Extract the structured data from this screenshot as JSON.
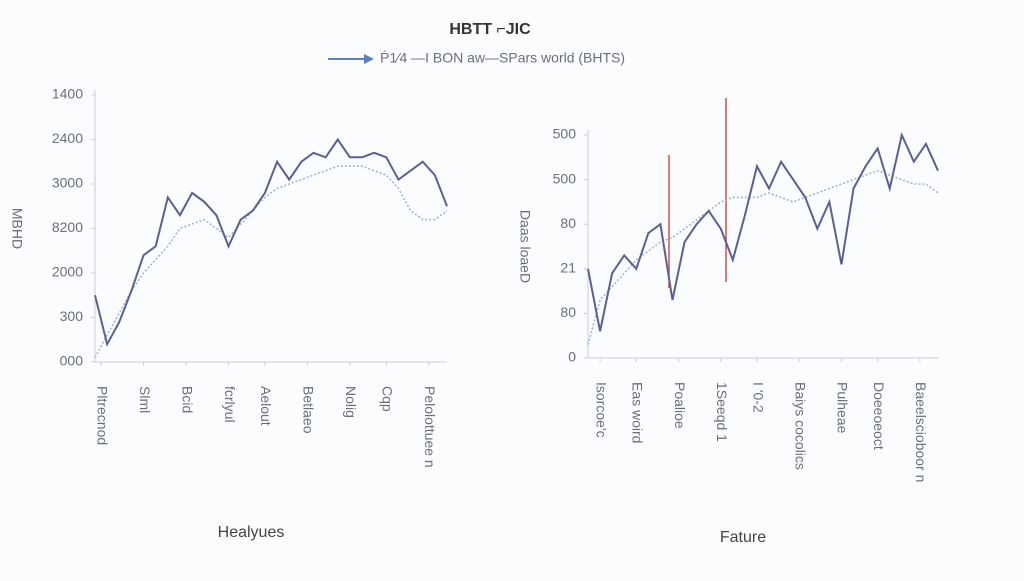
{
  "header": {
    "title": "HBTT ⌐JIC",
    "legend": "Ṕ1⁄4 —I BON aw—SPars world (BHTS)"
  },
  "chart_data": [
    {
      "type": "line",
      "ylabel": "MBHD",
      "xlabel": "Healyues",
      "x": [
        0,
        1,
        2,
        3,
        4,
        5,
        6,
        7,
        8,
        9,
        10,
        11,
        12,
        13,
        14,
        15,
        16,
        17,
        18,
        19,
        20,
        21,
        22,
        23,
        24,
        25,
        26,
        27,
        28,
        29
      ],
      "xlim": [
        0,
        29
      ],
      "xticks": [
        {
          "value": 0.5,
          "label": "Pltrecnod"
        },
        {
          "value": 4,
          "label": "Slml"
        },
        {
          "value": 7.5,
          "label": "Bcid"
        },
        {
          "value": 11,
          "label": "fcrlyul"
        },
        {
          "value": 14,
          "label": "Aelout"
        },
        {
          "value": 17.5,
          "label": "Betlaeo"
        },
        {
          "value": 21,
          "label": "Nolig"
        },
        {
          "value": 24,
          "label": "Cqp"
        },
        {
          "value": 27.5,
          "label": "Pelolottuee n"
        }
      ],
      "ylim": [
        0,
        6
      ],
      "yticks": [
        {
          "value": 6,
          "label": "1400"
        },
        {
          "value": 5,
          "label": "2400"
        },
        {
          "value": 4,
          "label": "3000"
        },
        {
          "value": 3,
          "label": "8200"
        },
        {
          "value": 2,
          "label": "2000"
        },
        {
          "value": 1,
          "label": "300"
        },
        {
          "value": 0,
          "label": "000"
        }
      ],
      "series": [
        {
          "color": "#5a6092",
          "values": [
            1.5,
            0.4,
            0.9,
            1.6,
            2.4,
            2.6,
            3.7,
            3.3,
            3.8,
            3.6,
            3.3,
            2.6,
            3.2,
            3.4,
            3.8,
            4.5,
            4.1,
            4.5,
            4.7,
            4.6,
            5.0,
            4.6,
            4.6,
            4.7,
            4.6,
            4.1,
            4.3,
            4.5,
            4.2,
            3.5
          ]
        },
        {
          "color": "#9db6d8",
          "values": [
            0.1,
            0.6,
            1.1,
            1.6,
            2.0,
            2.3,
            2.6,
            3.0,
            3.1,
            3.2,
            3.0,
            2.8,
            3.1,
            3.4,
            3.7,
            3.9,
            4.0,
            4.1,
            4.2,
            4.3,
            4.4,
            4.4,
            4.4,
            4.3,
            4.2,
            3.9,
            3.4,
            3.2,
            3.2,
            3.4
          ]
        }
      ]
    },
    {
      "type": "line",
      "ylabel": "Daas loaeD",
      "xlabel": "Fature",
      "x": [
        0,
        1,
        2,
        3,
        4,
        5,
        6,
        7,
        8,
        9,
        10,
        11,
        12,
        13,
        14,
        15,
        16,
        17,
        18,
        19,
        20,
        21,
        22,
        23,
        24,
        25,
        26,
        27,
        28,
        29
      ],
      "xlim": [
        0,
        29
      ],
      "xticks": [
        {
          "value": 1,
          "label": "Isorcoe'c"
        },
        {
          "value": 4,
          "label": "Eas woird"
        },
        {
          "value": 7.5,
          "label": "Poalioe"
        },
        {
          "value": 11,
          "label": "1Seeqd 1"
        },
        {
          "value": 14,
          "label": "I '0-2"
        },
        {
          "value": 17.5,
          "label": "Baiys cocolics"
        },
        {
          "value": 21,
          "label": "Pulheae"
        },
        {
          "value": 24,
          "label": "Doeeoeoct"
        },
        {
          "value": 27.5,
          "label": "Baeelscioboor n"
        }
      ],
      "ylim": [
        0,
        5
      ],
      "yticks": [
        {
          "value": 5,
          "label": "500"
        },
        {
          "value": 4,
          "label": "500"
        },
        {
          "value": 3,
          "label": "80"
        },
        {
          "value": 2,
          "label": "21"
        },
        {
          "value": 1,
          "label": "80"
        },
        {
          "value": 0,
          "label": "0"
        }
      ],
      "series": [
        {
          "color": "#5a6092",
          "values": [
            2.0,
            0.6,
            1.9,
            2.3,
            2.0,
            2.8,
            3.0,
            1.3,
            2.6,
            3.0,
            3.3,
            2.9,
            2.2,
            3.2,
            4.3,
            3.8,
            4.4,
            4.0,
            3.6,
            2.9,
            3.5,
            2.1,
            3.8,
            4.3,
            4.7,
            3.8,
            5.0,
            4.4,
            4.8,
            4.2
          ]
        },
        {
          "color": "#9db6d8",
          "values": [
            0.3,
            1.3,
            1.6,
            1.9,
            2.2,
            2.4,
            2.6,
            2.7,
            2.9,
            3.1,
            3.3,
            3.5,
            3.6,
            3.6,
            3.6,
            3.7,
            3.6,
            3.5,
            3.6,
            3.7,
            3.8,
            3.9,
            4.0,
            4.1,
            4.2,
            4.1,
            4.0,
            3.9,
            3.9,
            3.7
          ]
        }
      ]
    }
  ]
}
